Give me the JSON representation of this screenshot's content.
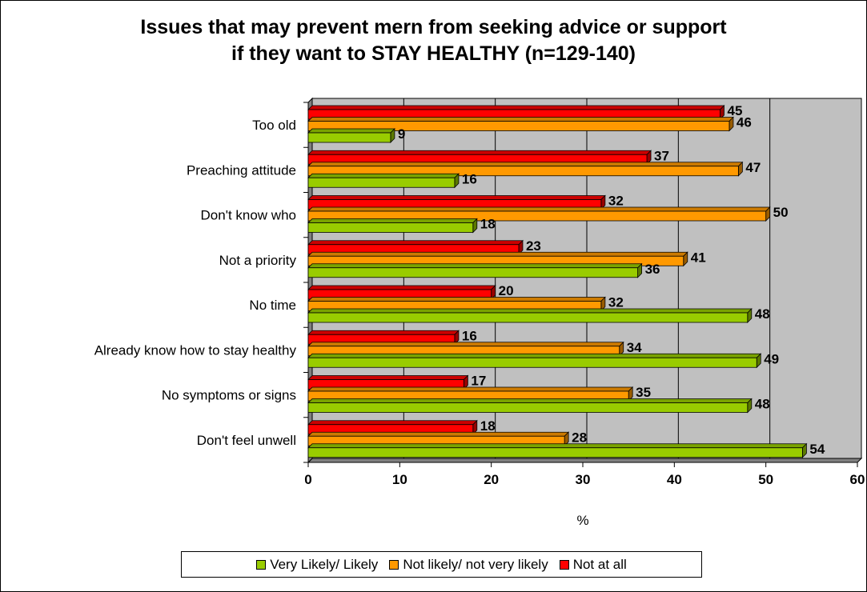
{
  "chart_data": {
    "type": "bar",
    "orientation": "horizontal",
    "title": [
      "Issues that may prevent mern from seeking advice or support",
      "if they want to STAY HEALTHY (n=129-140)"
    ],
    "xlabel": "%",
    "xlim": [
      0,
      60
    ],
    "xticks": [
      "0",
      "10",
      "20",
      "30",
      "40",
      "50",
      "60"
    ],
    "grid": true,
    "legend_position": "bottom",
    "categories": [
      "Too old",
      "Preaching attitude",
      "Don't know who",
      "Not a priority",
      "No time",
      "Already know how to stay healthy",
      "No symptoms or signs",
      "Don't feel unwell"
    ],
    "series": [
      {
        "name": "Very Likely/ Likely",
        "color": "#99cc00",
        "values": [
          9,
          16,
          18,
          36,
          48,
          49,
          48,
          54
        ]
      },
      {
        "name": "Not likely/ not very likely",
        "color": "#ff9900",
        "values": [
          46,
          47,
          50,
          41,
          32,
          34,
          35,
          28
        ]
      },
      {
        "name": "Not at all",
        "color": "#ff0000",
        "values": [
          45,
          37,
          32,
          23,
          20,
          16,
          17,
          18
        ]
      }
    ]
  }
}
